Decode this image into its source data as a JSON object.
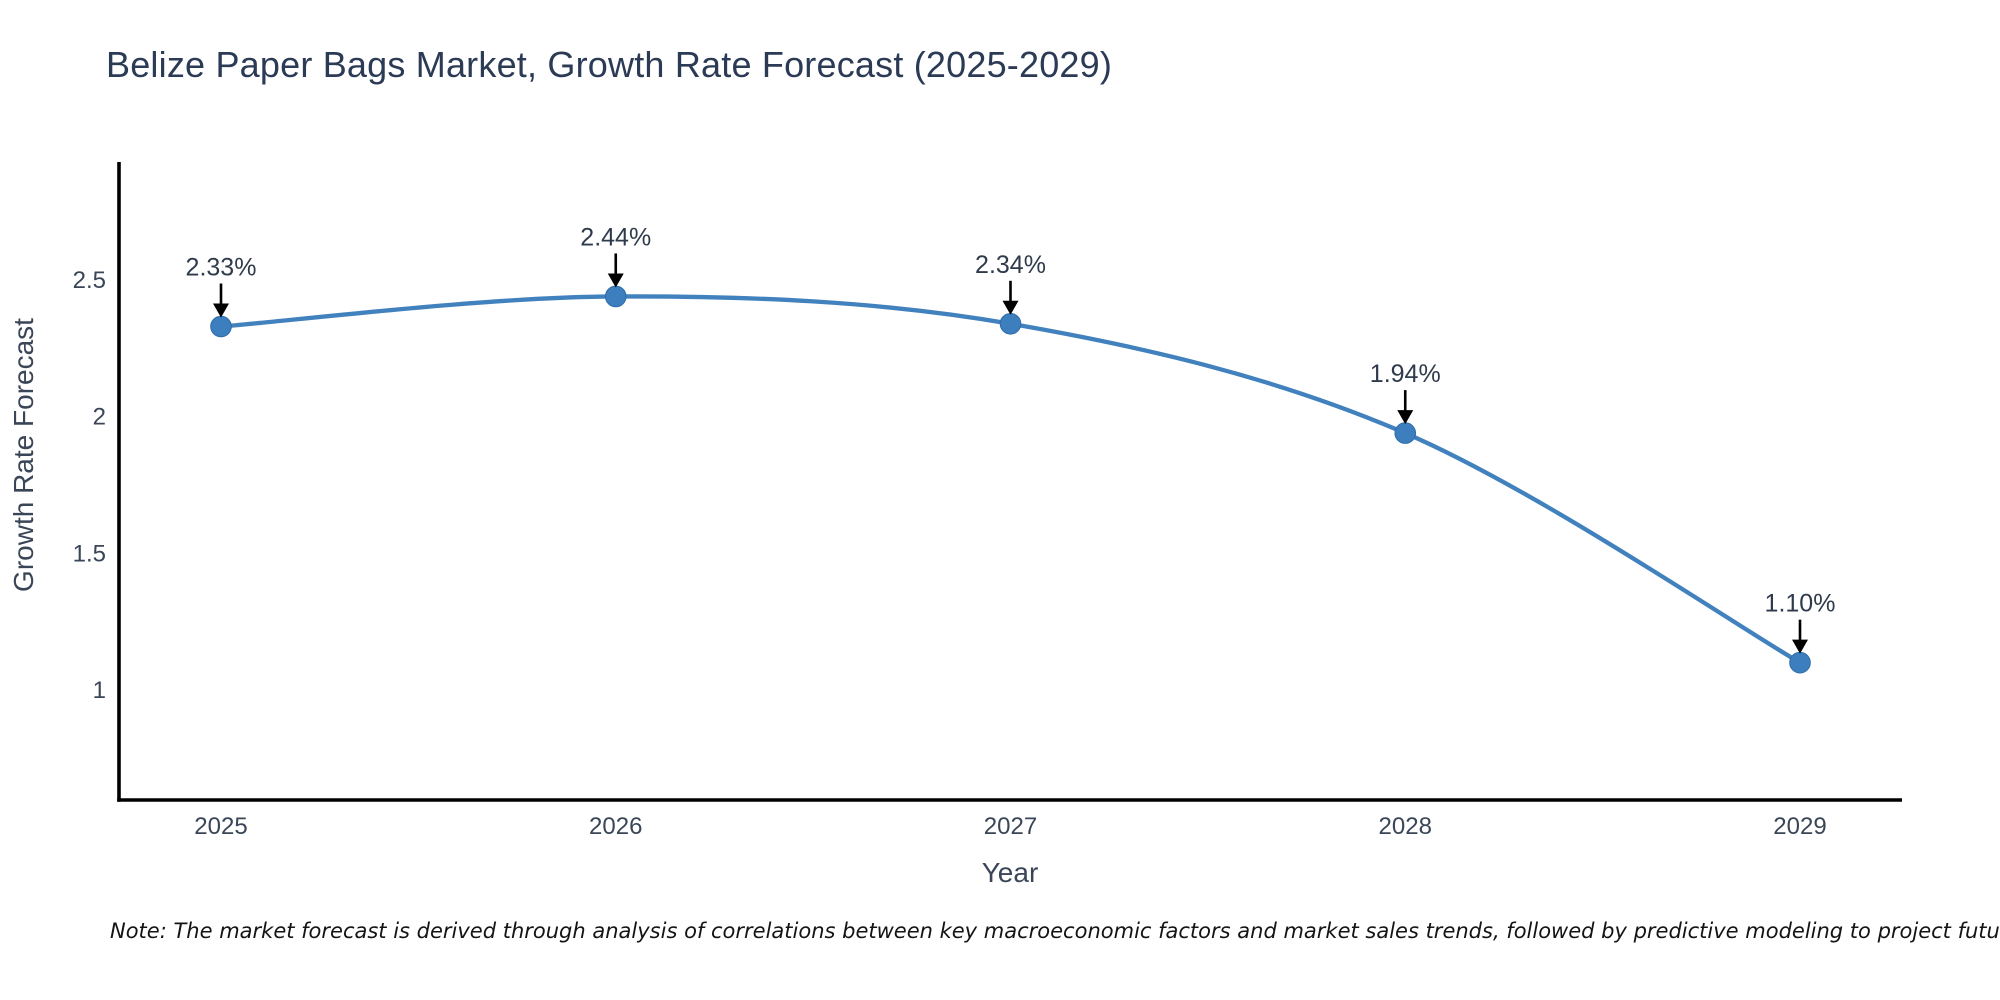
{
  "chart_data": {
    "type": "line",
    "title": "Belize Paper Bags Market, Growth Rate Forecast (2025-2029)",
    "xlabel": "Year",
    "ylabel": "Growth Rate Forecast",
    "categories": [
      "2025",
      "2026",
      "2027",
      "2028",
      "2029"
    ],
    "x": [
      2025,
      2026,
      2027,
      2028,
      2029
    ],
    "values": [
      2.33,
      2.44,
      2.34,
      1.94,
      1.1
    ],
    "point_labels": [
      "2.33%",
      "2.44%",
      "2.34%",
      "1.94%",
      "1.10%"
    ],
    "unit": "%",
    "yticks": [
      1,
      1.5,
      2,
      2.5
    ],
    "ytick_labels": [
      "1",
      "1.5",
      "2",
      "2.5"
    ],
    "ylim": [
      0.6,
      2.94
    ],
    "xlim": [
      2024.74,
      2029.26
    ],
    "grid": false,
    "legend_position": "none",
    "line_shape": "spline",
    "marker": "circle",
    "annotation_arrows": true,
    "colors": {
      "line": "#4181bd",
      "marker": "#3d7ebf",
      "marker_edge": "#2e6ca8",
      "axis": "#000000",
      "arrow": "#000000",
      "tick_text": "#3a4657",
      "annotation_text": "#2f3b4c",
      "title_text": "#2b3a55",
      "axis_title_text": "#3a4657",
      "note_text": "#141414"
    }
  },
  "note": "Note: The market forecast is derived through analysis of correlations between key macroeconomic factors and market sales trends, followed by predictive modeling to project future sales"
}
